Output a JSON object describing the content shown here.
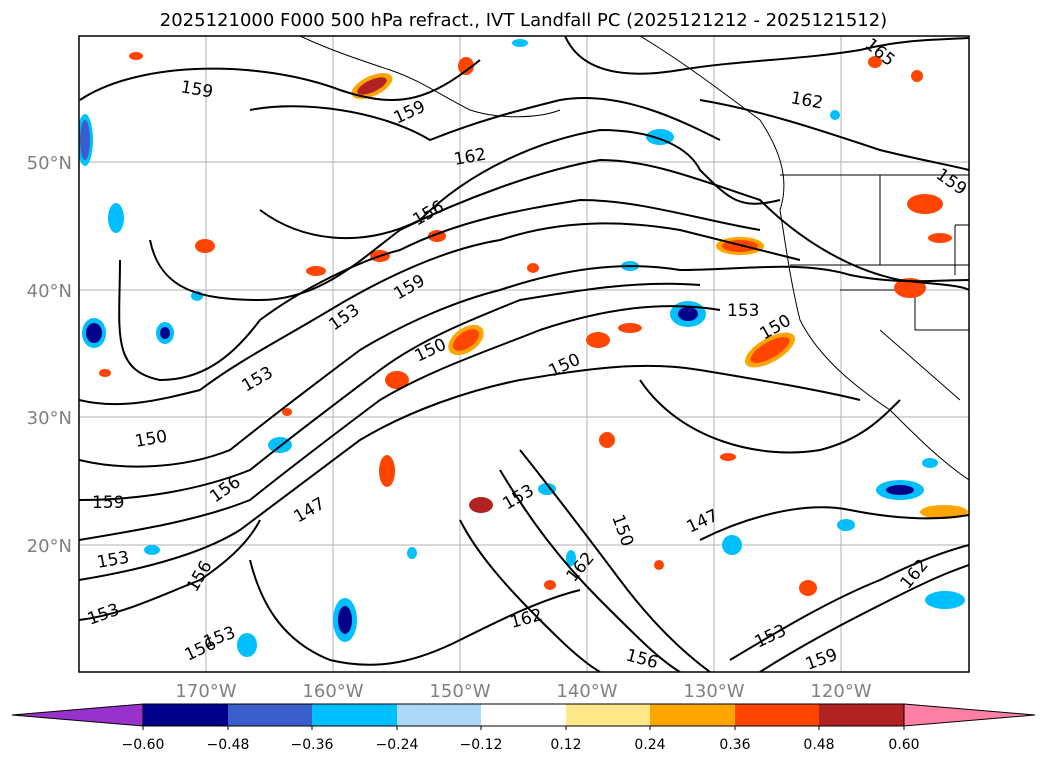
{
  "title": "2025121000 F000 500 hPa refract., IVT Landfall PC (2025121212 - 2025121512)",
  "map": {
    "lat_labels": [
      "50°N",
      "40°N",
      "30°N",
      "20°N"
    ],
    "lon_labels": [
      "170°W",
      "160°W",
      "150°W",
      "140°W",
      "130°W",
      "120°W"
    ],
    "contour_labels": [
      "159",
      "159",
      "162",
      "156",
      "159",
      "153",
      "153",
      "150",
      "150",
      "153",
      "150",
      "150",
      "159",
      "156",
      "153",
      "147",
      "153",
      "150",
      "162",
      "147",
      "156",
      "153",
      "156",
      "162",
      "153",
      "159",
      "153",
      "162",
      "156",
      "162",
      "159",
      "165"
    ],
    "colors": {
      "land_border": "#000000",
      "grid": "#b0b0b0",
      "contour": "#000000"
    }
  },
  "colorbar": {
    "ticks": [
      "−0.60",
      "−0.48",
      "−0.36",
      "−0.24",
      "−0.12",
      "0.12",
      "0.24",
      "0.36",
      "0.48",
      "0.60"
    ],
    "colors": [
      "#9932cc",
      "#00008b",
      "#3a5fcd",
      "#00bfff",
      "#add8f7",
      "#ffffff",
      "#ffe88a",
      "#ffa500",
      "#ff4500",
      "#b22222",
      "#ff7fa5"
    ]
  }
}
